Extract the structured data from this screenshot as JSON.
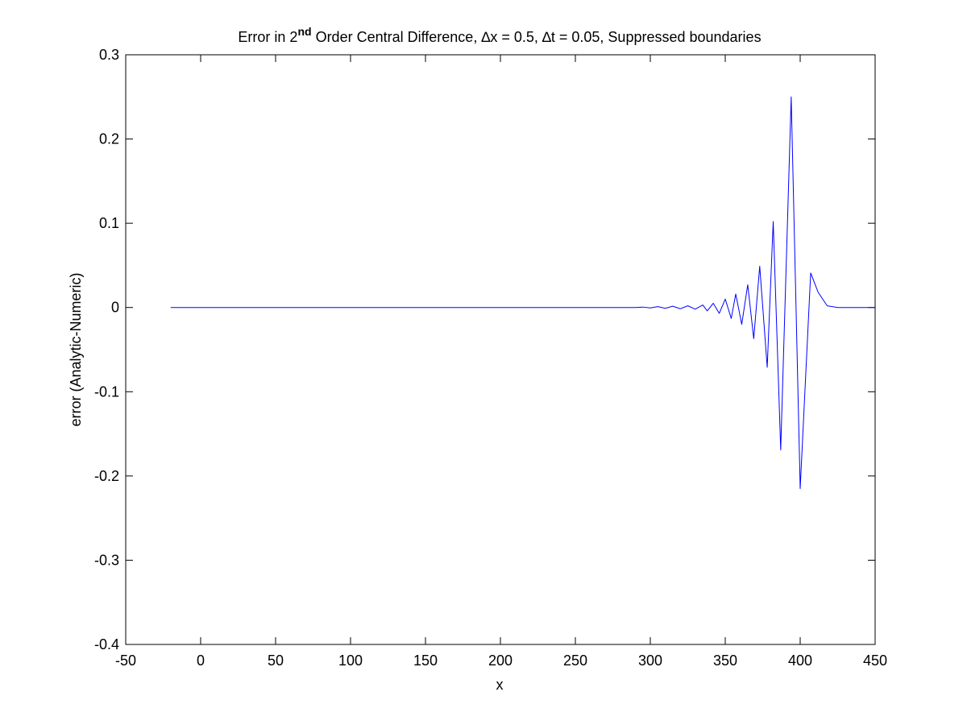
{
  "chart_data": {
    "type": "line",
    "title": {
      "prefix": "Error in 2",
      "superscript": "nd",
      "suffix": " Order Central Difference, ∆x = 0.5, ∆t = 0.05, Suppressed boundaries"
    },
    "xlabel": "x",
    "ylabel": "error (Analytic-Numeric)",
    "xlim": [
      -50,
      450
    ],
    "ylim": [
      -0.4,
      0.3
    ],
    "x_ticks": [
      -50,
      0,
      50,
      100,
      150,
      200,
      250,
      300,
      350,
      400,
      450
    ],
    "x_tick_labels": [
      "-50",
      "0",
      "50",
      "100",
      "150",
      "200",
      "250",
      "300",
      "350",
      "400",
      "450"
    ],
    "y_ticks": [
      0.3,
      0.2,
      0.1,
      0,
      -0.1,
      -0.2,
      -0.3,
      -0.4
    ],
    "y_tick_labels": [
      "0.3",
      "0.2",
      "0.1",
      "0",
      "-0.1",
      "-0.2",
      "-0.3",
      "-0.4"
    ],
    "grid": false,
    "line_color": "#0000ff",
    "series": [
      {
        "x": [
          -20,
          290,
          295,
          300,
          305,
          310,
          315,
          320,
          325,
          330,
          335,
          338,
          342,
          346,
          350,
          354,
          357,
          361,
          365,
          369,
          373,
          378,
          382,
          387,
          394,
          400,
          407,
          412,
          418,
          425,
          450
        ],
        "y": [
          0,
          0,
          0.0005,
          -0.0005,
          0.001,
          -0.001,
          0.0015,
          -0.0015,
          0.002,
          -0.002,
          0.003,
          -0.004,
          0.005,
          -0.007,
          0.01,
          -0.013,
          0.016,
          -0.02,
          0.027,
          -0.037,
          0.049,
          -0.071,
          0.102,
          -0.169,
          0.25,
          -0.215,
          0.041,
          0.018,
          0.002,
          0,
          0
        ]
      }
    ]
  }
}
